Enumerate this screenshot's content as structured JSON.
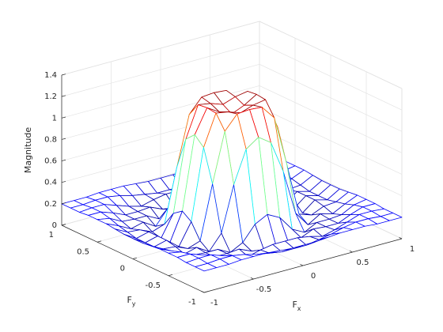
{
  "chart_data": {
    "type": "mesh",
    "xlabel": {
      "text": "F",
      "subscript": "x"
    },
    "ylabel": {
      "text": "F",
      "subscript": "y"
    },
    "zlabel": "Magnitude",
    "x": [
      -1,
      -0.875,
      -0.75,
      -0.625,
      -0.5,
      -0.375,
      -0.25,
      -0.125,
      0,
      0.125,
      0.25,
      0.375,
      0.5,
      0.625,
      0.75,
      0.875,
      1
    ],
    "y": [
      -1,
      -0.875,
      -0.75,
      -0.625,
      -0.5,
      -0.375,
      -0.25,
      -0.125,
      0,
      0.125,
      0.25,
      0.375,
      0.5,
      0.625,
      0.75,
      0.875,
      1
    ],
    "z": [
      [
        0.2,
        0.2,
        0.2,
        0.21,
        0.21,
        0.21,
        0.2,
        0.19,
        0.19,
        0.19,
        0.2,
        0.21,
        0.21,
        0.21,
        0.2,
        0.2,
        0.2
      ],
      [
        0.2,
        0.2,
        0.21,
        0.21,
        0.19,
        0.16,
        0.14,
        0.12,
        0.12,
        0.12,
        0.14,
        0.16,
        0.19,
        0.21,
        0.21,
        0.2,
        0.2
      ],
      [
        0.2,
        0.21,
        0.21,
        0.17,
        0.13,
        0.1,
        0.13,
        0.15,
        0.15,
        0.15,
        0.13,
        0.1,
        0.13,
        0.17,
        0.21,
        0.21,
        0.2
      ],
      [
        0.21,
        0.21,
        0.17,
        0.12,
        0.12,
        0.13,
        0.08,
        0.06,
        0.06,
        0.06,
        0.08,
        0.13,
        0.12,
        0.12,
        0.17,
        0.21,
        0.21
      ],
      [
        0.21,
        0.19,
        0.13,
        0.12,
        0.12,
        0.06,
        0.12,
        0.26,
        0.32,
        0.26,
        0.12,
        0.06,
        0.12,
        0.12,
        0.13,
        0.19,
        0.21
      ],
      [
        0.21,
        0.16,
        0.1,
        0.13,
        0.06,
        0.2,
        0.62,
        0.92,
        1.0,
        0.92,
        0.62,
        0.2,
        0.06,
        0.13,
        0.1,
        0.16,
        0.21
      ],
      [
        0.2,
        0.14,
        0.13,
        0.08,
        0.12,
        0.62,
        1.08,
        1.21,
        1.22,
        1.21,
        1.08,
        0.62,
        0.12,
        0.08,
        0.13,
        0.14,
        0.2
      ],
      [
        0.19,
        0.12,
        0.15,
        0.06,
        0.26,
        0.92,
        1.21,
        1.19,
        1.15,
        1.19,
        1.21,
        0.92,
        0.26,
        0.06,
        0.15,
        0.12,
        0.19
      ],
      [
        0.19,
        0.12,
        0.15,
        0.06,
        0.32,
        1.0,
        1.22,
        1.15,
        1.1,
        1.15,
        1.22,
        1.0,
        0.32,
        0.06,
        0.15,
        0.12,
        0.19
      ],
      [
        0.19,
        0.12,
        0.15,
        0.06,
        0.26,
        0.92,
        1.21,
        1.19,
        1.15,
        1.19,
        1.21,
        0.92,
        0.26,
        0.06,
        0.15,
        0.12,
        0.19
      ],
      [
        0.2,
        0.14,
        0.13,
        0.08,
        0.12,
        0.62,
        1.08,
        1.21,
        1.22,
        1.21,
        1.08,
        0.62,
        0.12,
        0.08,
        0.13,
        0.14,
        0.2
      ],
      [
        0.21,
        0.16,
        0.1,
        0.13,
        0.06,
        0.2,
        0.62,
        0.92,
        1.0,
        0.92,
        0.62,
        0.2,
        0.06,
        0.13,
        0.1,
        0.16,
        0.21
      ],
      [
        0.21,
        0.19,
        0.13,
        0.12,
        0.12,
        0.06,
        0.12,
        0.26,
        0.32,
        0.26,
        0.12,
        0.06,
        0.12,
        0.12,
        0.13,
        0.19,
        0.21
      ],
      [
        0.21,
        0.21,
        0.17,
        0.12,
        0.12,
        0.13,
        0.08,
        0.06,
        0.06,
        0.06,
        0.08,
        0.13,
        0.12,
        0.12,
        0.17,
        0.21,
        0.21
      ],
      [
        0.2,
        0.21,
        0.21,
        0.17,
        0.13,
        0.1,
        0.13,
        0.15,
        0.15,
        0.15,
        0.13,
        0.1,
        0.13,
        0.17,
        0.21,
        0.21,
        0.2
      ],
      [
        0.2,
        0.2,
        0.21,
        0.21,
        0.19,
        0.16,
        0.14,
        0.12,
        0.12,
        0.12,
        0.14,
        0.16,
        0.19,
        0.21,
        0.21,
        0.2,
        0.2
      ],
      [
        0.2,
        0.2,
        0.2,
        0.21,
        0.21,
        0.21,
        0.2,
        0.19,
        0.19,
        0.19,
        0.2,
        0.21,
        0.21,
        0.21,
        0.2,
        0.2,
        0.2
      ]
    ],
    "xlim": [
      -1,
      1
    ],
    "ylim": [
      -1,
      1
    ],
    "zlim": [
      0,
      1.4
    ],
    "xticks": [
      -1,
      -0.5,
      0,
      0.5,
      1
    ],
    "yticks": [
      -1,
      -0.5,
      0,
      0.5,
      1
    ],
    "zticks": [
      0,
      0.2,
      0.4,
      0.6,
      0.8,
      1,
      1.2,
      1.4
    ],
    "grid": true,
    "colormap": "jet"
  }
}
